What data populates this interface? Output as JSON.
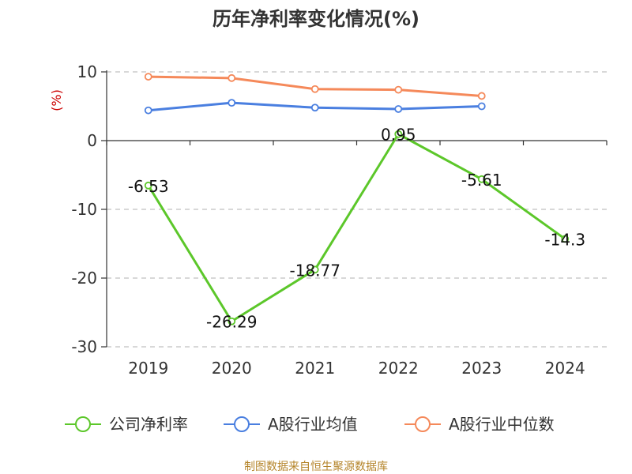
{
  "chart_data": {
    "type": "line",
    "title": "历年净利率变化情况(%)",
    "ylabel": "(%)",
    "categories": [
      "2019",
      "2020",
      "2021",
      "2022",
      "2023",
      "2024"
    ],
    "ylim": [
      -30,
      10
    ],
    "yticks": [
      10,
      0,
      -10,
      -20,
      -30
    ],
    "grid": true,
    "legend_position": "bottom",
    "series": [
      {
        "name": "公司净利率",
        "color": "#5cc72a",
        "values": [
          -6.53,
          -26.29,
          -18.77,
          0.95,
          -5.61,
          -14.3
        ],
        "labels": [
          "-6.53",
          "-26.29",
          "-18.77",
          "0.95",
          "-5.61",
          "-14.3"
        ]
      },
      {
        "name": "A股行业均值",
        "color": "#4a7fe0",
        "values": [
          4.4,
          5.5,
          4.8,
          4.6,
          5.0,
          null
        ]
      },
      {
        "name": "A股行业中位数",
        "color": "#f5895a",
        "values": [
          9.3,
          9.1,
          7.5,
          7.4,
          6.5,
          null
        ]
      }
    ]
  },
  "source": "制图数据来自恒生聚源数据库"
}
